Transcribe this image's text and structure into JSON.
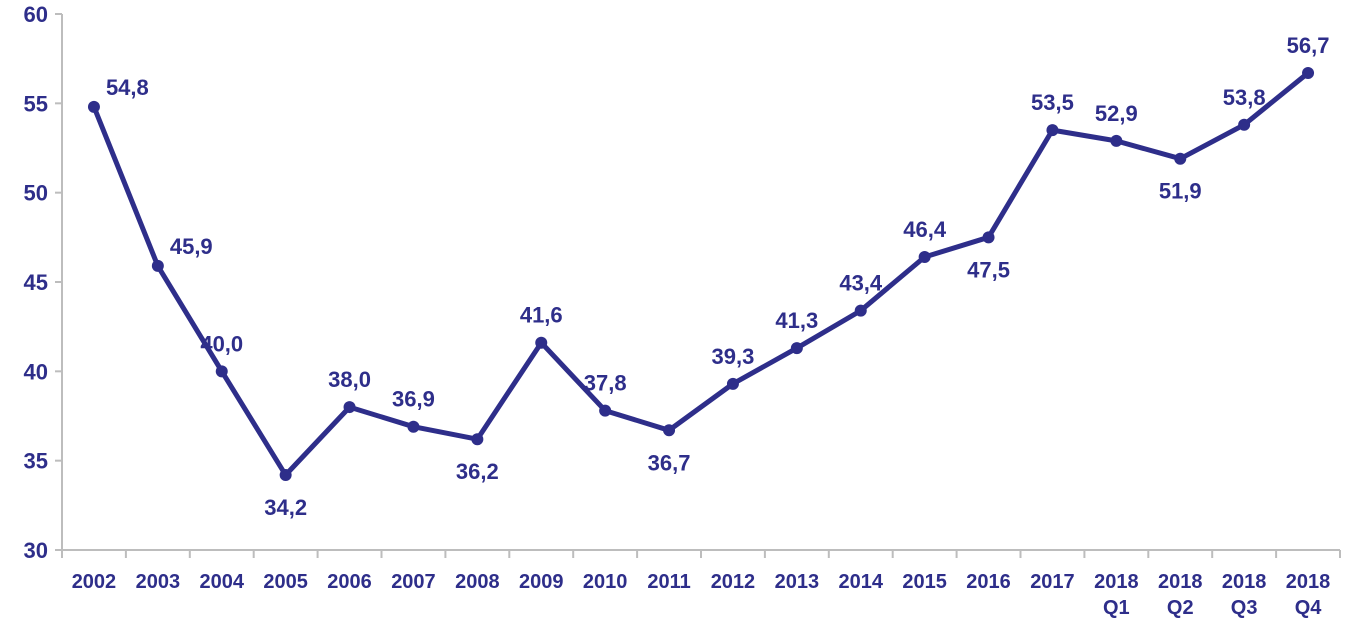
{
  "chart_data": {
    "type": "line",
    "title": "",
    "xlabel": "",
    "ylabel": "",
    "ylim": [
      30,
      60
    ],
    "yticks": [
      30,
      35,
      40,
      45,
      50,
      55,
      60
    ],
    "grid": false,
    "legend": "none",
    "categories": [
      [
        "2002"
      ],
      [
        "2003"
      ],
      [
        "2004"
      ],
      [
        "2005"
      ],
      [
        "2006"
      ],
      [
        "2007"
      ],
      [
        "2008"
      ],
      [
        "2009"
      ],
      [
        "2010"
      ],
      [
        "2011"
      ],
      [
        "2012"
      ],
      [
        "2013"
      ],
      [
        "2014"
      ],
      [
        "2015"
      ],
      [
        "2016"
      ],
      [
        "2017"
      ],
      [
        "2018",
        "Q1"
      ],
      [
        "2018",
        "Q2"
      ],
      [
        "2018",
        "Q3"
      ],
      [
        "2018",
        "Q4"
      ]
    ],
    "series": [
      {
        "values": [
          54.8,
          45.9,
          40.0,
          34.2,
          38.0,
          36.9,
          36.2,
          41.6,
          37.8,
          36.7,
          39.3,
          41.3,
          43.4,
          46.4,
          47.5,
          53.5,
          52.9,
          51.9,
          53.8,
          56.7
        ],
        "labels": [
          "54,8",
          "45,9",
          "40,0",
          "34,2",
          "38,0",
          "36,9",
          "36,2",
          "41,6",
          "37,8",
          "36,7",
          "39,3",
          "41,3",
          "43,4",
          "46,4",
          "47,5",
          "53,5",
          "52,9",
          "51,9",
          "53,8",
          "56,7"
        ],
        "label_pos": [
          "right",
          "right",
          "above",
          "below",
          "above",
          "above",
          "below",
          "above",
          "above",
          "below",
          "above",
          "above",
          "above",
          "above",
          "below",
          "above",
          "above",
          "below",
          "above",
          "above"
        ]
      }
    ],
    "colors": {
      "line": "#2e2e8a",
      "text": "#2e2e8a",
      "axis": "#bdbdbd"
    }
  }
}
